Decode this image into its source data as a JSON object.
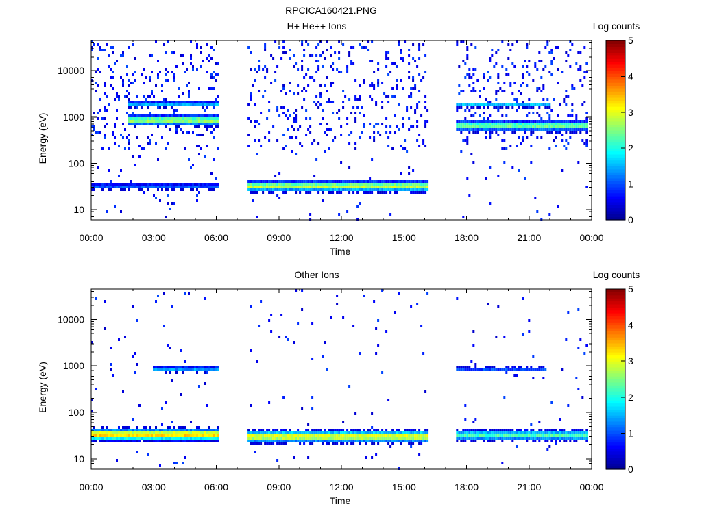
{
  "figure_title": "RPCICA160421.PNG",
  "colors": {
    "colormap": [
      "#00008f",
      "#0000ff",
      "#0080ff",
      "#00ffff",
      "#80ff80",
      "#ffff00",
      "#ff8000",
      "#ff0000",
      "#800000"
    ],
    "axis": "#000000",
    "background": "#ffffff"
  },
  "chart_data": [
    {
      "type": "heatmap",
      "title": "H+ He++ Ions",
      "xlabel": "Time",
      "ylabel": "Energy (eV)",
      "y_scale": "log",
      "xlim": [
        0,
        24
      ],
      "ylim": [
        6,
        45000
      ],
      "x_ticks": [
        {
          "value": 0,
          "label": "00:00"
        },
        {
          "value": 3,
          "label": "03:00"
        },
        {
          "value": 6,
          "label": "06:00"
        },
        {
          "value": 9,
          "label": "09:00"
        },
        {
          "value": 12,
          "label": "12:00"
        },
        {
          "value": 15,
          "label": "15:00"
        },
        {
          "value": 18,
          "label": "18:00"
        },
        {
          "value": 21,
          "label": "21:00"
        },
        {
          "value": 24,
          "label": "00:00"
        }
      ],
      "y_ticks": [
        {
          "value": 10,
          "label": "10"
        },
        {
          "value": 100,
          "label": "100"
        },
        {
          "value": 1000,
          "label": "1000"
        },
        {
          "value": 10000,
          "label": "10000"
        }
      ],
      "colorbar": {
        "label": "Log counts",
        "range": [
          0,
          5
        ],
        "ticks": [
          "0",
          "1",
          "2",
          "3",
          "4",
          "5"
        ]
      },
      "data_intervals": [
        {
          "start": 0.0,
          "end": 6.1
        },
        {
          "start": 7.5,
          "end": 16.1
        },
        {
          "start": 17.5,
          "end": 23.8
        }
      ],
      "bands": [
        {
          "start": 0.0,
          "end": 6.1,
          "energy": 32,
          "width_decades": 0.06,
          "level": 1.1
        },
        {
          "start": 1.7,
          "end": 6.1,
          "energy": 850,
          "width_decades": 0.09,
          "level": 2.7
        },
        {
          "start": 1.7,
          "end": 6.1,
          "energy": 1900,
          "width_decades": 0.05,
          "level": 1.6
        },
        {
          "start": 7.5,
          "end": 16.1,
          "energy": 32,
          "width_decades": 0.09,
          "level": 2.9
        },
        {
          "start": 17.5,
          "end": 23.8,
          "energy": 650,
          "width_decades": 0.09,
          "level": 2.5
        },
        {
          "start": 17.5,
          "end": 22.0,
          "energy": 1800,
          "width_decades": 0.04,
          "level": 1.6
        }
      ]
    },
    {
      "type": "heatmap",
      "title": "Other Ions",
      "xlabel": "Time",
      "ylabel": "Energy (eV)",
      "y_scale": "log",
      "xlim": [
        0,
        24
      ],
      "ylim": [
        6,
        45000
      ],
      "x_ticks": [
        {
          "value": 0,
          "label": "00:00"
        },
        {
          "value": 3,
          "label": "03:00"
        },
        {
          "value": 6,
          "label": "06:00"
        },
        {
          "value": 9,
          "label": "09:00"
        },
        {
          "value": 12,
          "label": "12:00"
        },
        {
          "value": 15,
          "label": "15:00"
        },
        {
          "value": 18,
          "label": "18:00"
        },
        {
          "value": 21,
          "label": "21:00"
        },
        {
          "value": 24,
          "label": "00:00"
        }
      ],
      "y_ticks": [
        {
          "value": 10,
          "label": "10"
        },
        {
          "value": 100,
          "label": "100"
        },
        {
          "value": 1000,
          "label": "1000"
        },
        {
          "value": 10000,
          "label": "10000"
        }
      ],
      "colorbar": {
        "label": "Log counts",
        "range": [
          0,
          5
        ],
        "ticks": [
          "0",
          "1",
          "2",
          "3",
          "4",
          "5"
        ]
      },
      "data_intervals": [
        {
          "start": 0.0,
          "end": 6.1
        },
        {
          "start": 7.5,
          "end": 16.1
        },
        {
          "start": 17.5,
          "end": 23.8
        }
      ],
      "bands": [
        {
          "start": 0.0,
          "end": 6.1,
          "energy": 33,
          "width_decades": 0.1,
          "level": 3.4
        },
        {
          "start": 2.9,
          "end": 6.1,
          "energy": 850,
          "width_decades": 0.05,
          "level": 1.5
        },
        {
          "start": 7.5,
          "end": 16.1,
          "energy": 30,
          "width_decades": 0.1,
          "level": 3.1
        },
        {
          "start": 17.5,
          "end": 23.8,
          "energy": 32,
          "width_decades": 0.09,
          "level": 2.2
        },
        {
          "start": 17.5,
          "end": 21.8,
          "energy": 850,
          "width_decades": 0.04,
          "level": 1.1
        }
      ]
    }
  ]
}
